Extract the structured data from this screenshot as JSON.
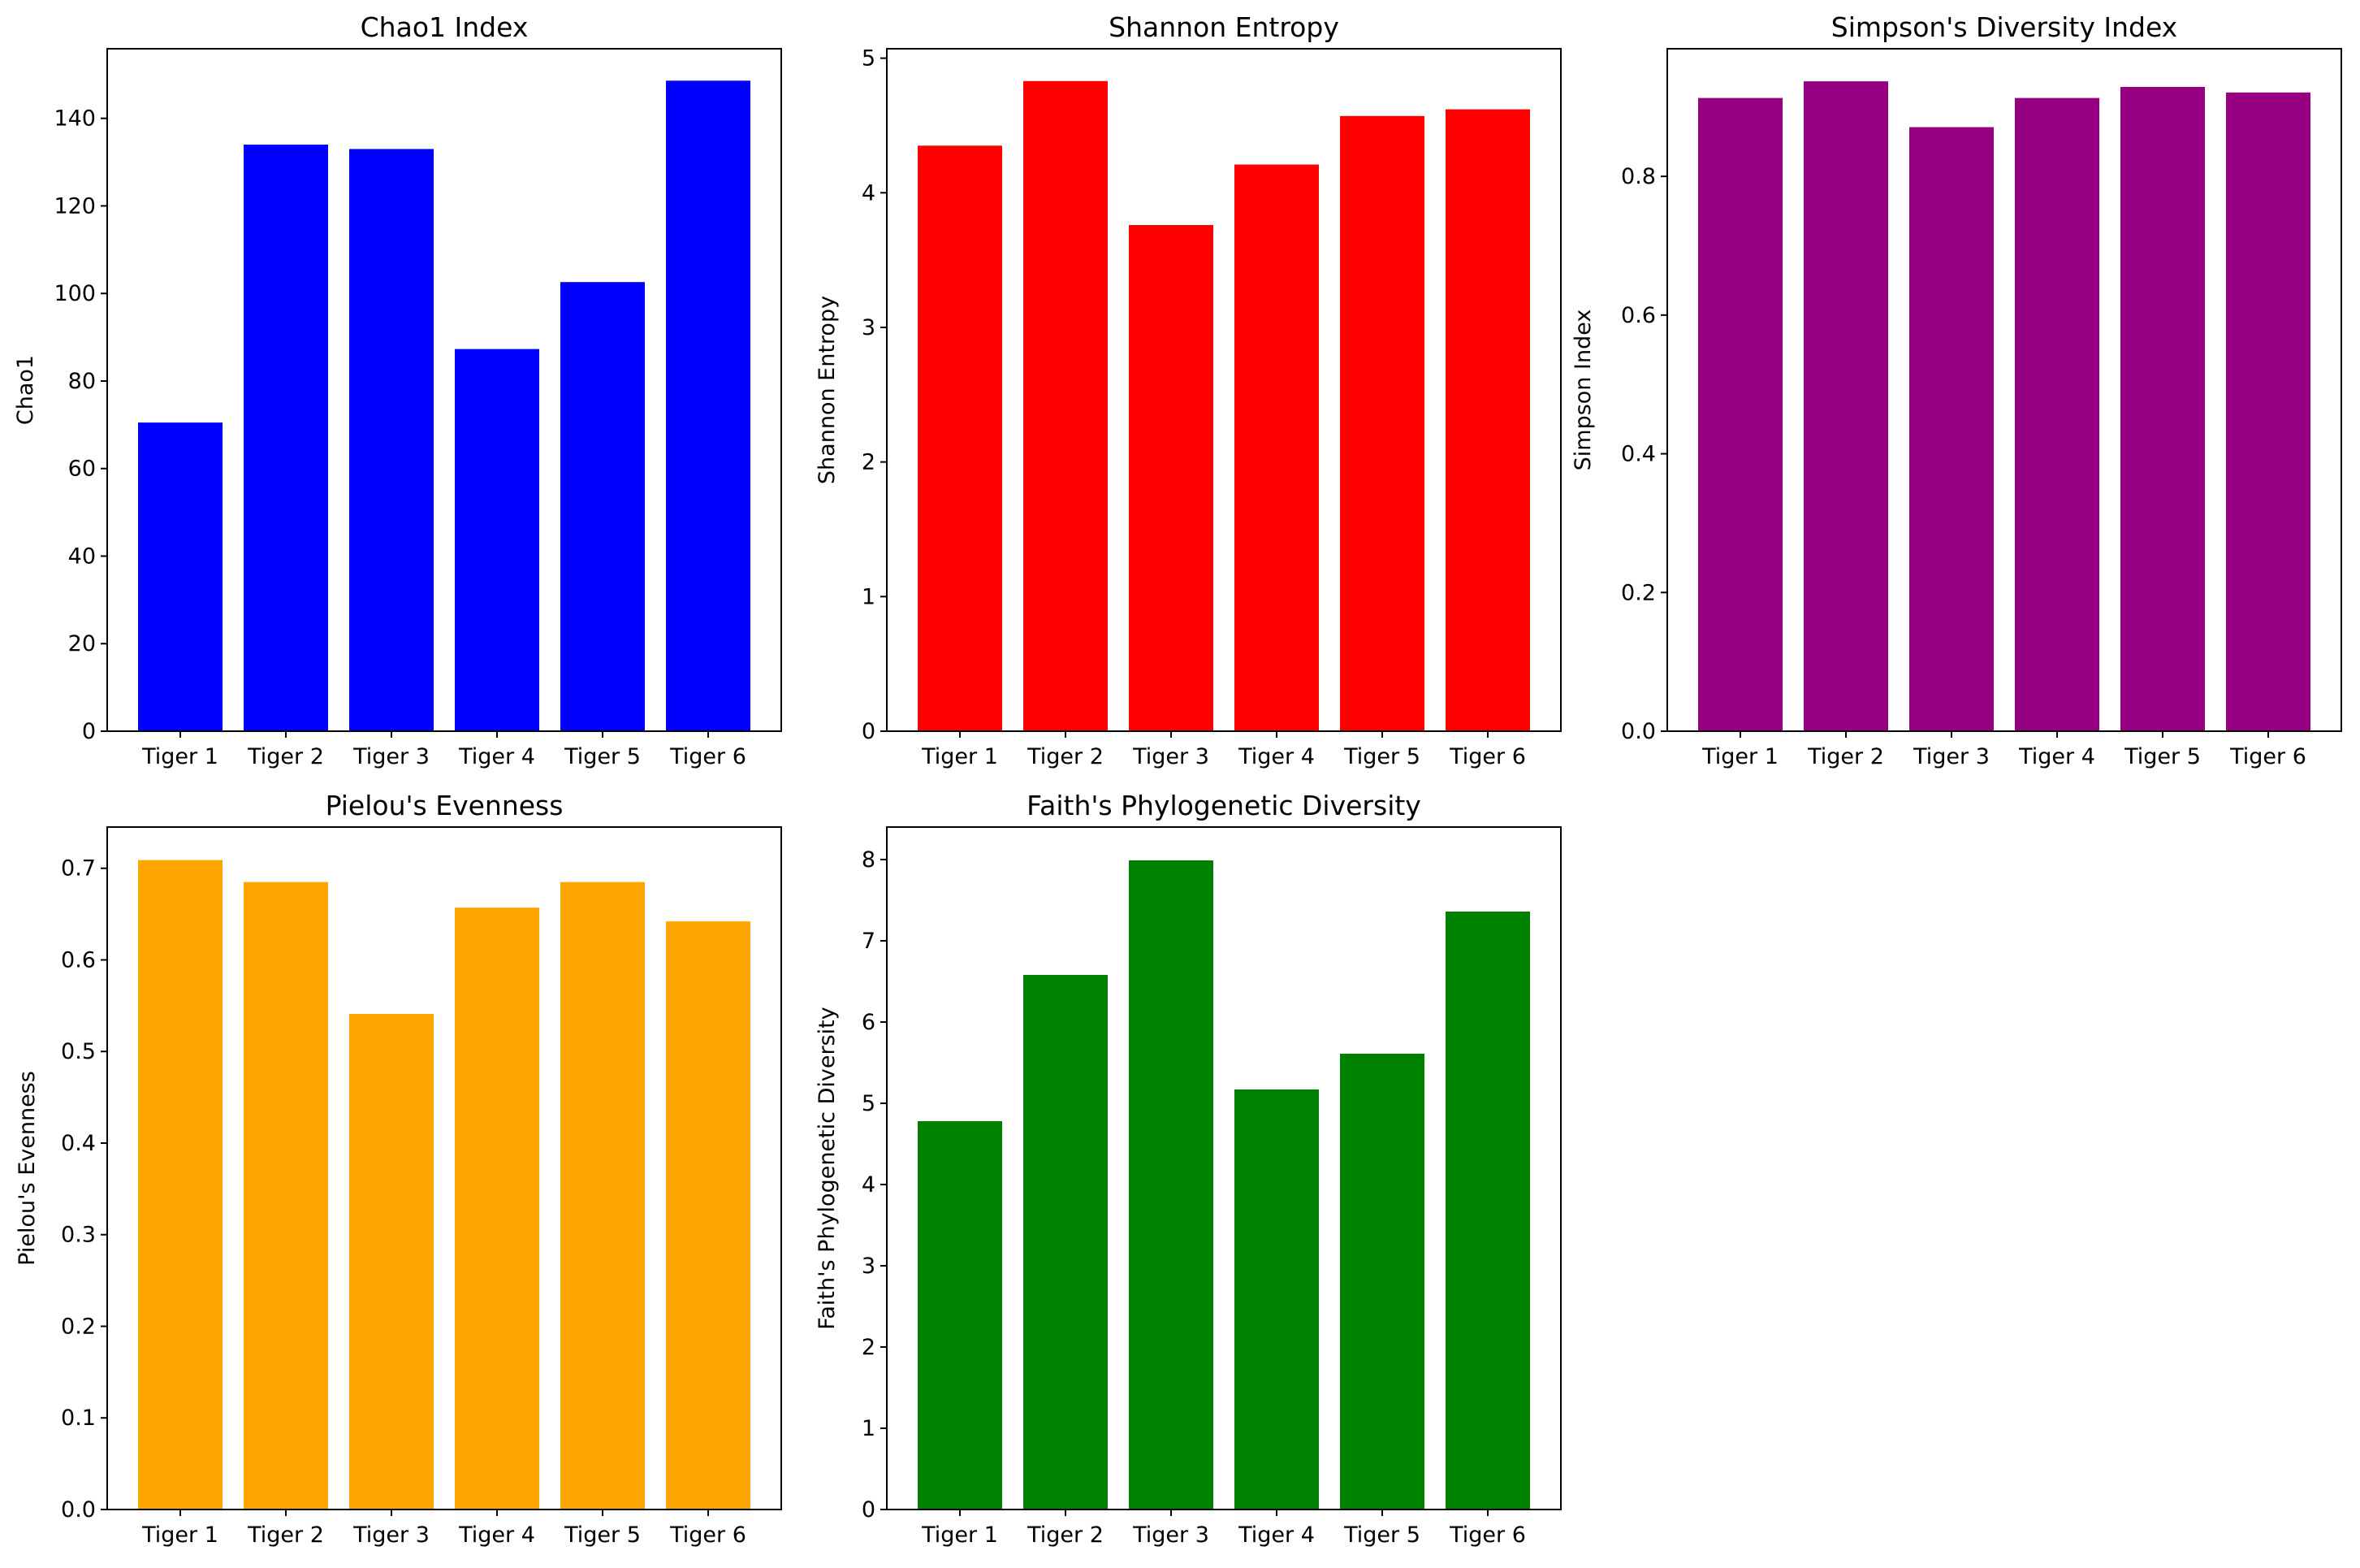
{
  "chart_data": [
    {
      "type": "bar",
      "title": "Chao1 Index",
      "xlabel": "",
      "ylabel": "Chao1",
      "categories": [
        "Tiger 1",
        "Tiger 2",
        "Tiger 3",
        "Tiger 4",
        "Tiger 5",
        "Tiger 6"
      ],
      "values": [
        70.5,
        134,
        133,
        87.3,
        102.6,
        148.6
      ],
      "ylim": [
        0,
        155.9
      ],
      "yticks": [
        0,
        20,
        40,
        60,
        80,
        100,
        120,
        140
      ],
      "color": "#0000ff",
      "grid": false
    },
    {
      "type": "bar",
      "title": "Shannon Entropy",
      "xlabel": "",
      "ylabel": "Shannon Entropy",
      "categories": [
        "Tiger 1",
        "Tiger 2",
        "Tiger 3",
        "Tiger 4",
        "Tiger 5",
        "Tiger 6"
      ],
      "values": [
        4.35,
        4.83,
        3.76,
        4.21,
        4.57,
        4.62
      ],
      "ylim": [
        0,
        5.07
      ],
      "yticks": [
        0,
        1,
        2,
        3,
        4,
        5
      ],
      "color": "#ff0000",
      "grid": false
    },
    {
      "type": "bar",
      "title": "Simpson's Diversity Index",
      "xlabel": "",
      "ylabel": "Simpson Index",
      "categories": [
        "Tiger 1",
        "Tiger 2",
        "Tiger 3",
        "Tiger 4",
        "Tiger 5",
        "Tiger 6"
      ],
      "values": [
        0.913,
        0.937,
        0.871,
        0.913,
        0.929,
        0.921
      ],
      "ylim": [
        0,
        0.984
      ],
      "yticks": [
        0.0,
        0.2,
        0.4,
        0.6,
        0.8
      ],
      "color": "#960080",
      "grid": false
    },
    {
      "type": "bar",
      "title": "Pielou's Evenness",
      "xlabel": "",
      "ylabel": "Pielou's Evenness",
      "categories": [
        "Tiger 1",
        "Tiger 2",
        "Tiger 3",
        "Tiger 4",
        "Tiger 5",
        "Tiger 6"
      ],
      "values": [
        0.709,
        0.685,
        0.541,
        0.657,
        0.685,
        0.642
      ],
      "ylim": [
        0,
        0.745
      ],
      "yticks": [
        0.0,
        0.1,
        0.2,
        0.3,
        0.4,
        0.5,
        0.6,
        0.7
      ],
      "color": "#ffa500",
      "grid": false
    },
    {
      "type": "bar",
      "title": "Faith's Phylogenetic Diversity",
      "xlabel": "",
      "ylabel": "Faith's Phylogenetic Diversity",
      "categories": [
        "Tiger 1",
        "Tiger 2",
        "Tiger 3",
        "Tiger 4",
        "Tiger 5",
        "Tiger 6"
      ],
      "values": [
        4.78,
        6.58,
        7.99,
        5.17,
        5.61,
        7.36
      ],
      "ylim": [
        0,
        8.4
      ],
      "yticks": [
        0,
        1,
        2,
        3,
        4,
        5,
        6,
        7,
        8
      ],
      "color": "#008000",
      "grid": false
    }
  ]
}
